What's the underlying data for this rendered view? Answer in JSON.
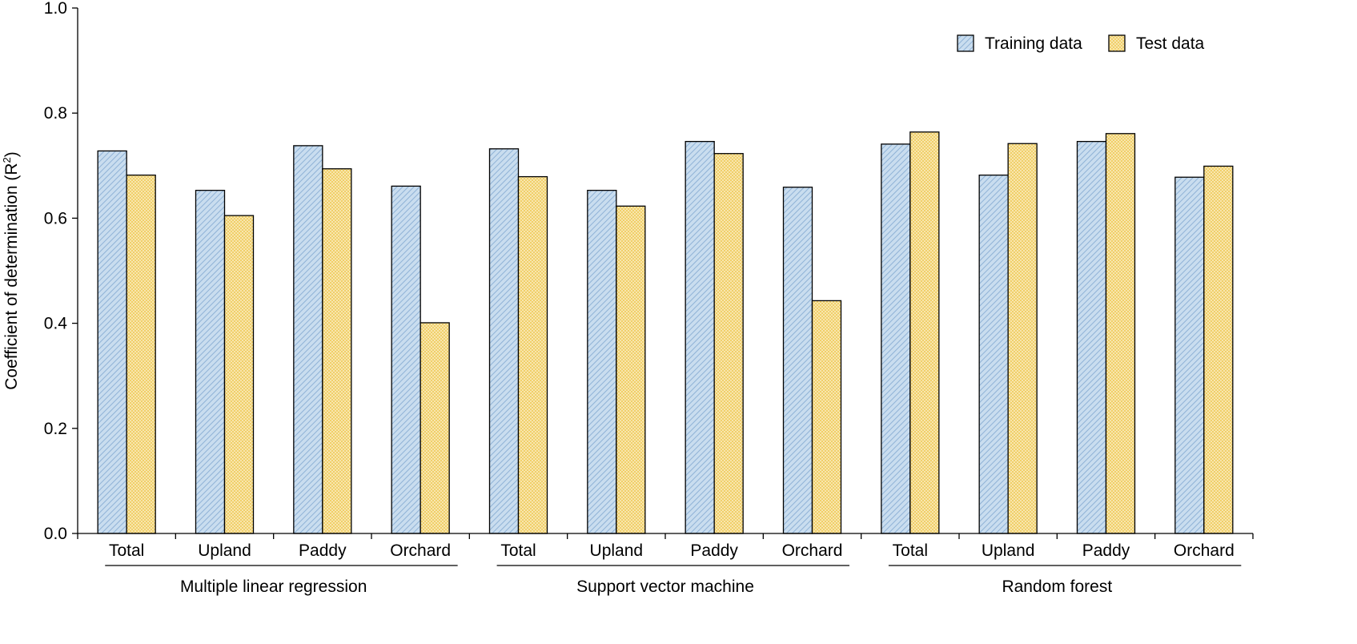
{
  "chart_data": {
    "type": "bar",
    "ylabel_main": "Coefficient of determination (R",
    "ylabel_sup": "2",
    "ylabel_end": ")",
    "ylim": [
      0,
      1.0
    ],
    "yticks": [
      "0.0",
      "0.2",
      "0.4",
      "0.6",
      "0.8",
      "1.0"
    ],
    "grid": false,
    "legend_position": "top-right",
    "groups": [
      {
        "name": "Multiple linear regression",
        "categories": [
          "Total",
          "Upland",
          "Paddy",
          "Orchard"
        ]
      },
      {
        "name": "Support vector machine",
        "categories": [
          "Total",
          "Upland",
          "Paddy",
          "Orchard"
        ]
      },
      {
        "name": "Random forest",
        "categories": [
          "Total",
          "Upland",
          "Paddy",
          "Orchard"
        ]
      }
    ],
    "series": [
      {
        "name": "Training data",
        "color": "#b9d3ea",
        "values": [
          0.728,
          0.653,
          0.738,
          0.661,
          0.732,
          0.653,
          0.746,
          0.659,
          0.741,
          0.682,
          0.746,
          0.678
        ]
      },
      {
        "name": "Test data",
        "color": "#f7e19a",
        "values": [
          0.682,
          0.605,
          0.694,
          0.401,
          0.679,
          0.623,
          0.723,
          0.443,
          0.764,
          0.742,
          0.761,
          0.699
        ]
      }
    ]
  }
}
